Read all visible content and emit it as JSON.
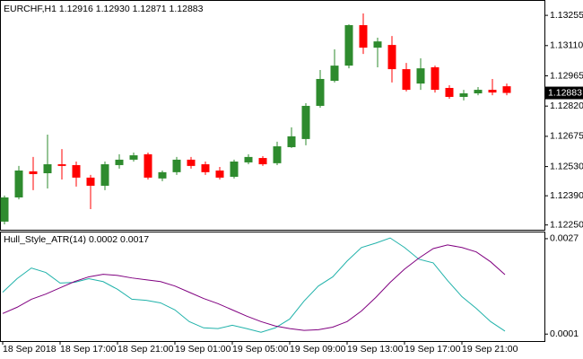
{
  "chart_data": [
    {
      "type": "candlestick",
      "title": "EURCHF,H1",
      "title_values": [
        "1.12916",
        "1.12930",
        "1.12871",
        "1.12883"
      ],
      "x": [
        "18 Sep 2018",
        null,
        null,
        null,
        "18 Sep 17:00",
        null,
        null,
        null,
        "18 Sep 21:00",
        null,
        null,
        null,
        "19 Sep 01:00",
        null,
        null,
        null,
        "19 Sep 05:00",
        null,
        null,
        null,
        "19 Sep 09:00",
        null,
        null,
        null,
        "19 Sep 13:00",
        null,
        null,
        null,
        "19 Sep 17:00",
        null,
        null,
        null,
        "19 Sep 21:00",
        null,
        null,
        null
      ],
      "open": [
        1.12266,
        1.12382,
        1.12507,
        1.12498,
        1.12541,
        1.12537,
        1.12477,
        1.12438,
        1.12537,
        1.12563,
        1.12589,
        1.12473,
        1.12503,
        1.12563,
        1.12541,
        1.12511,
        1.12481,
        1.1255,
        1.12571,
        1.12546,
        1.12623,
        1.12662,
        1.12821,
        1.12941,
        1.13014,
        1.13208,
        1.131,
        1.13113,
        1.12997,
        1.12928,
        1.13006,
        1.12907,
        1.12864,
        1.12881,
        1.12898,
        1.12915
      ],
      "high": [
        1.12391,
        1.12533,
        1.12576,
        1.12683,
        1.12614,
        1.12554,
        1.1249,
        1.12554,
        1.12589,
        1.12597,
        1.12597,
        1.12511,
        1.12576,
        1.12576,
        1.12554,
        1.12528,
        1.12563,
        1.12589,
        1.1258,
        1.12649,
        1.12718,
        1.12834,
        1.12993,
        1.13092,
        1.13212,
        1.13264,
        1.13148,
        1.13156,
        1.13027,
        1.13049,
        1.13014,
        1.1292,
        1.12898,
        1.12911,
        1.1295,
        1.12928
      ],
      "low": [
        1.12253,
        1.12373,
        1.12417,
        1.12425,
        1.12468,
        1.12434,
        1.12326,
        1.12417,
        1.1252,
        1.12554,
        1.12468,
        1.1246,
        1.1249,
        1.1252,
        1.1249,
        1.12468,
        1.12473,
        1.12541,
        1.12533,
        1.12537,
        1.12619,
        1.12632,
        1.12812,
        1.12933,
        1.13001,
        1.1307,
        1.13006,
        1.12933,
        1.1289,
        1.12898,
        1.12885,
        1.12855,
        1.12847,
        1.12872,
        1.12872,
        1.12872
      ],
      "close": [
        1.12382,
        1.12511,
        1.12494,
        1.12541,
        1.12533,
        1.12477,
        1.12438,
        1.12541,
        1.12563,
        1.12584,
        1.12477,
        1.12503,
        1.12563,
        1.12533,
        1.12503,
        1.12477,
        1.12554,
        1.12576,
        1.12541,
        1.12627,
        1.12675,
        1.12821,
        1.1295,
        1.13014,
        1.13208,
        1.131,
        1.1313,
        1.12997,
        1.12898,
        1.13001,
        1.12898,
        1.12864,
        1.12881,
        1.12898,
        1.12885,
        1.12883
      ],
      "up_color": "#2e8b2e",
      "down_color": "#ff0000",
      "ylim": [
        1.12227,
        1.1332
      ],
      "yticks": [
        1.13255,
        {
          "value": 1.1311,
          "label": "1.13110"
        },
        1.12965,
        {
          "value": 1.1282,
          "label": "1.12820"
        },
        1.12675,
        {
          "value": 1.1253,
          "label": "1.12530"
        },
        {
          "value": 1.1239,
          "label": "1.12390"
        },
        {
          "value": 1.1225,
          "label": "1.12250"
        }
      ]
    },
    {
      "type": "line",
      "title": "Hull_Style_ATR(14)",
      "title_values": [
        "0.0002",
        "0.0017"
      ],
      "series": [
        {
          "color": "#20b2aa",
          "values": [
            0.00124,
            0.00161,
            0.0019,
            0.00178,
            0.00149,
            0.00151,
            0.00161,
            0.00153,
            0.00132,
            0.00105,
            0.00102,
            0.00095,
            0.00076,
            0.00044,
            0.00027,
            0.00025,
            0.00034,
            0.00025,
            0.00015,
            0.00027,
            0.00051,
            0.001,
            0.00141,
            0.00166,
            0.00209,
            0.00246,
            0.00258,
            0.00272,
            0.00246,
            0.00214,
            0.00204,
            0.00156,
            0.00112,
            0.0008,
            0.00044,
            0.00018
          ]
        },
        {
          "color": "#800080",
          "values": [
            0.00066,
            0.00083,
            0.00105,
            0.00119,
            0.00136,
            0.00153,
            0.00166,
            0.00173,
            0.0017,
            0.00163,
            0.00158,
            0.00153,
            0.00141,
            0.00124,
            0.00107,
            0.00093,
            0.00076,
            0.00059,
            0.00044,
            0.00032,
            0.00025,
            0.0002,
            0.00022,
            0.00029,
            0.00044,
            0.00073,
            0.0011,
            0.00151,
            0.00187,
            0.00217,
            0.00243,
            0.00253,
            0.00246,
            0.00234,
            0.00207,
            0.00172
          ]
        }
      ],
      "ylim": [
        -9e-05,
        0.00287
      ],
      "yticks": [
        0.0027,
        0.0001
      ]
    }
  ]
}
